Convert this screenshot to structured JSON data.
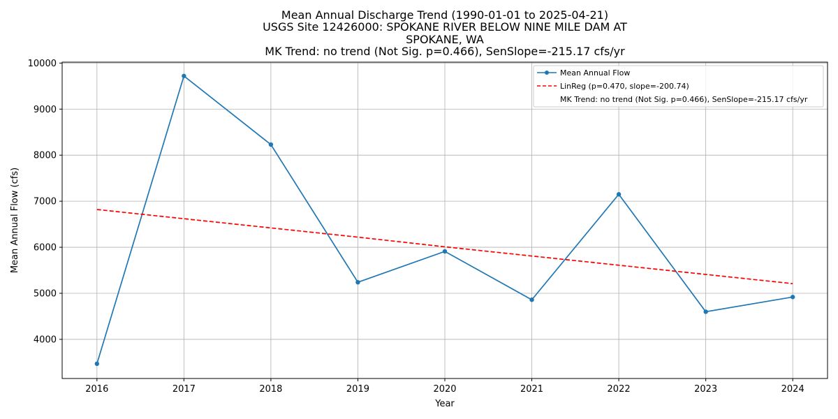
{
  "chart_data": {
    "type": "line",
    "title_lines": [
      "Mean Annual Discharge Trend (1990-01-01 to 2025-04-21)",
      "USGS Site 12426000: SPOKANE RIVER BELOW NINE MILE DAM AT",
      "SPOKANE, WA",
      "MK Trend: no trend (Not Sig. p=0.466), SenSlope=-215.17 cfs/yr"
    ],
    "xlabel": "Year",
    "ylabel": "Mean Annual Flow (cfs)",
    "x": [
      2016,
      2017,
      2018,
      2019,
      2020,
      2021,
      2022,
      2023,
      2024
    ],
    "xlim": [
      2015.6,
      2024.4
    ],
    "ylim": [
      3150,
      10020
    ],
    "x_ticks": [
      2016,
      2017,
      2018,
      2019,
      2020,
      2021,
      2022,
      2023,
      2024
    ],
    "y_ticks": [
      4000,
      5000,
      6000,
      7000,
      8000,
      9000,
      10000
    ],
    "grid": true,
    "legend_position": "top-right",
    "series": [
      {
        "name": "Mean Annual Flow",
        "style": "line-with-markers",
        "color": "#1f77b4",
        "values": [
          3470,
          9720,
          8230,
          5240,
          5910,
          4860,
          7150,
          4600,
          4920
        ]
      },
      {
        "name": "LinReg (p=0.470, slope=-200.74)",
        "style": "dashed",
        "color": "#ff0000",
        "values": [
          6820,
          6620,
          6420,
          6220,
          6010,
          5810,
          5610,
          5410,
          5210
        ]
      }
    ],
    "legend_extra_entry": "MK Trend: no trend (Not Sig. p=0.466), SenSlope=-215.17 cfs/yr"
  }
}
